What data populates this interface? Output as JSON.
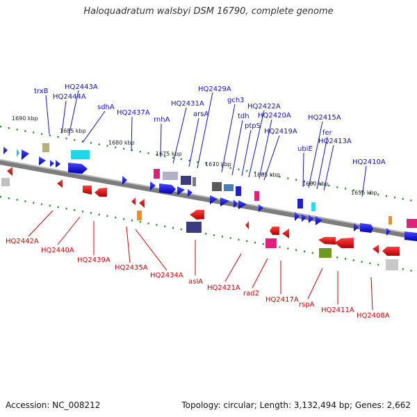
{
  "title": "Haloquadratum walsbyi DSM 16790, complete genome",
  "accession": "Accession: NC_008212",
  "topology": "Topology: circular; Length: 3,132,494 bp; Genes: 2,662",
  "colors": {
    "forward_label": "#1010c8",
    "reverse_label": "#c80000",
    "backbone": "#7a7a7a",
    "tick_green": "#1a8c1a"
  },
  "scale_labels": [
    "1690 kbp",
    "1685 kbp",
    "1680 kbp",
    "1675 kbp",
    "1670 kbp",
    "1665 kbp",
    "1660 kbp",
    "1655 kbp"
  ],
  "forward_genes": [
    "trxB",
    "HQ2443A",
    "HQ2444A",
    "sdhA",
    "HQ2437A",
    "rnhA",
    "HQ2431A",
    "arsA",
    "HQ2429A",
    "gch3",
    "tdh",
    "ptpS",
    "HQ2422A",
    "HQ2420A",
    "HQ2419A",
    "ubiE",
    "HQ2415A",
    "fer",
    "HQ2413A",
    "HQ2410A"
  ],
  "reverse_genes": [
    "HQ2442A",
    "HQ2440A",
    "HQ2439A",
    "HQ2435A",
    "HQ2434A",
    "asIA",
    "HQ2421A",
    "rad2",
    "HQ2417A",
    "rspA",
    "HQ2411A",
    "HQ2408A"
  ]
}
